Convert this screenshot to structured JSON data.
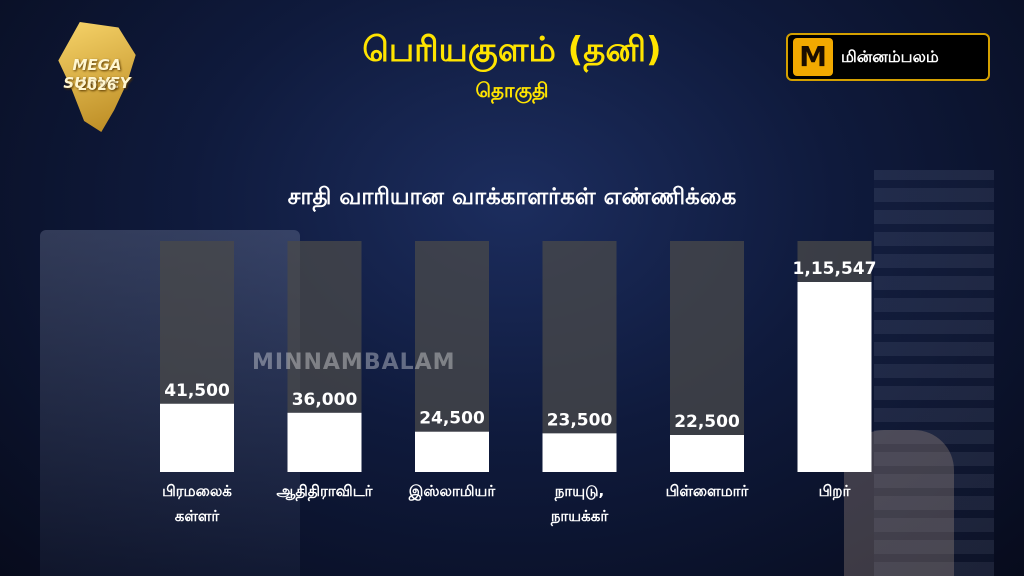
{
  "logo": {
    "line1": "MEGA SURVEY",
    "line2": "2026"
  },
  "header": {
    "title": "பெரியகுளம் (தனி)",
    "subtitle": "தொகுதி"
  },
  "brand": {
    "mark": "M",
    "name": "மின்னம்பலம்"
  },
  "watermark": "MINNAMBALAM",
  "colors": {
    "title": "#ffe400",
    "bar": "#ffffff",
    "track": "#4a4a4a"
  },
  "chart_data": {
    "type": "bar",
    "title": "சாதி வாரியான வாக்காளர்கள் எண்ணிக்கை",
    "categories": [
      [
        "பிரமலைக்",
        "கள்ளர்"
      ],
      [
        "ஆதிதிராவிடர்"
      ],
      [
        "இஸ்லாமியர்"
      ],
      [
        "நாயுடு,",
        "நாயக்கர்"
      ],
      [
        "பிள்ளைமார்"
      ],
      [
        "பிறர்"
      ]
    ],
    "values": [
      41500,
      36000,
      24500,
      23500,
      22500,
      115547
    ],
    "value_labels": [
      "41,500",
      "36,000",
      "24,500",
      "23,500",
      "22,500",
      "1,15,547"
    ]
  }
}
